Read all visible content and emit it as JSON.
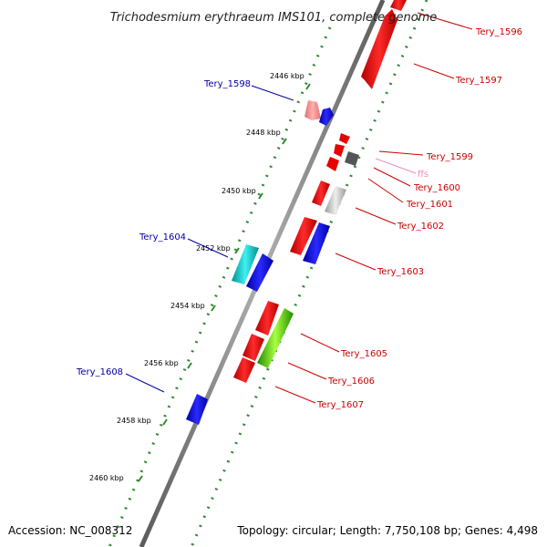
{
  "title": "Trichodesmium erythraeum IMS101, complete genome",
  "footer": {
    "accession": "Accession: NC_008312",
    "topology": "Topology: circular; Length: 7,750,108 bp; Genes: 4,498"
  },
  "colors": {
    "backbone": "#808080",
    "tick": "#2e8b2e",
    "forward": "#e80000",
    "reverse": "#0000e0",
    "forward_label": "#cc0000",
    "reverse_label": "#0000aa"
  },
  "ticks": [
    {
      "label": "2446 kbp"
    },
    {
      "label": "2448 kbp"
    },
    {
      "label": "2450 kbp"
    },
    {
      "label": "2452 kbp"
    },
    {
      "label": "2454 kbp"
    },
    {
      "label": "2456 kbp"
    },
    {
      "label": "2458 kbp"
    },
    {
      "label": "2460 kbp"
    }
  ],
  "genes": [
    {
      "name": "Tery_1596",
      "color": "#e80000",
      "label_color": "#cc0000"
    },
    {
      "name": "Tery_1597",
      "color": "#e80000",
      "label_color": "#cc0000"
    },
    {
      "name": "Tery_1598",
      "color": "#0000e0",
      "label_color": "#0000aa"
    },
    {
      "name": "Tery_1599",
      "color": "#e80000",
      "label_color": "#cc0000"
    },
    {
      "name": "ffs",
      "color": "#f4a6c8",
      "label_color": "#f08cc0"
    },
    {
      "name": "Tery_1600",
      "color": "#e80000",
      "label_color": "#cc0000"
    },
    {
      "name": "Tery_1601",
      "color": "#555555",
      "label_color": "#cc0000"
    },
    {
      "name": "Tery_1602",
      "color": "#c8c8c8",
      "label_color": "#cc0000"
    },
    {
      "name": "Tery_1603",
      "color": "#0000e0",
      "label_color": "#cc0000"
    },
    {
      "name": "Tery_1604",
      "color": "#00c8c8",
      "label_color": "#0000aa"
    },
    {
      "name": "Tery_1605",
      "color": "#e80000",
      "label_color": "#cc0000"
    },
    {
      "name": "Tery_1606",
      "color": "#66dd00",
      "label_color": "#cc0000"
    },
    {
      "name": "Tery_1607",
      "color": "#e80000",
      "label_color": "#cc0000"
    },
    {
      "name": "Tery_1608",
      "color": "#0000e0",
      "label_color": "#0000aa"
    }
  ]
}
